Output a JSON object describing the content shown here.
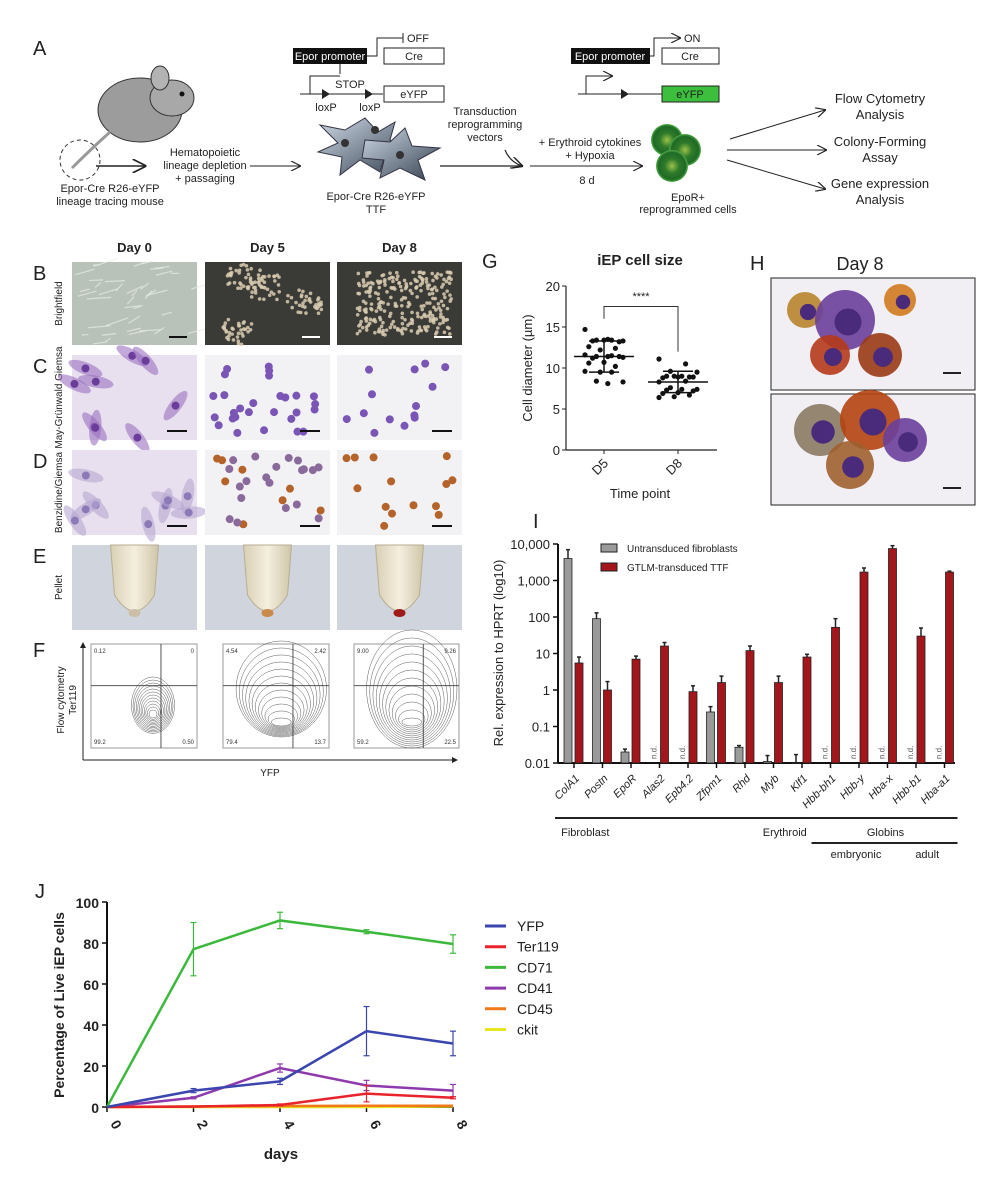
{
  "panels": {
    "A": "A",
    "B": "B",
    "C": "C",
    "D": "D",
    "E": "E",
    "F": "F",
    "G": "G",
    "H": "H",
    "I": "I",
    "J": "J"
  },
  "schematic": {
    "mouse_caption_1": "Epor-Cre R26-eYFP",
    "mouse_caption_2": "lineage tracing mouse",
    "step1_1": "Hematopoietic",
    "step1_2": "lineage depletion",
    "step1_3": "+ passaging",
    "construct_off": {
      "promoter": "Epor promoter",
      "cre": "Cre",
      "state": "OFF",
      "stop": "STOP",
      "loxp1": "loxP",
      "loxp2": "loxP",
      "reporter": "eYFP"
    },
    "ttf_caption_1": "Epor-Cre R26-eYFP",
    "ttf_caption_2": "TTF",
    "step2_1": "Transduction",
    "step2_2": "reprogramming",
    "step2_3": "vectors",
    "step3_1": "+ Erythroid cytokines",
    "step3_2": "+ Hypoxia",
    "step3_3": "8 d",
    "construct_on": {
      "promoter": "Epor promoter",
      "cre": "Cre",
      "state": "ON",
      "reporter": "eYFP"
    },
    "cells_caption_1": "EpoR+",
    "cells_caption_2": "reprogrammed cells",
    "outputs": [
      [
        "Flow Cytometry",
        "Analysis"
      ],
      [
        "Colony-Forming",
        "Assay"
      ],
      [
        "Gene expression",
        "Analysis"
      ]
    ]
  },
  "micro": {
    "columns": [
      "Day 0",
      "Day 5",
      "Day 8"
    ],
    "rows": [
      "Brightfield",
      "May-Grünwald Giemsa",
      "Benzidine/Giemsa",
      "Pellet",
      "Flow cytometry"
    ],
    "flow_ylabel": "Ter119",
    "flow_xlabel": "YFP",
    "flow_quadrants": [
      {
        "ul": "0.12",
        "ur": "0",
        "ll": "99.2",
        "lr": "0.50"
      },
      {
        "ul": "4.54",
        "ur": "2.42",
        "ll": "79.4",
        "lr": "13.7"
      },
      {
        "ul": "9.00",
        "ur": "9.26",
        "ll": "59.2",
        "lr": "22.5"
      }
    ]
  },
  "panelH": {
    "title": "Day 8"
  },
  "chart_data": [
    {
      "id": "G",
      "type": "scatter",
      "title": "iEP cell size",
      "xlabel": "Time point",
      "ylabel": "Cell diameter (µm)",
      "categories": [
        "D5",
        "D8"
      ],
      "ylim": [
        0,
        20
      ],
      "yticks": [
        0,
        5,
        10,
        15,
        20
      ],
      "significance": "****",
      "series": [
        {
          "name": "D5",
          "values": [
            14.7,
            13.4,
            13.4,
            13.3,
            13.5,
            13.3,
            13.2,
            13.4,
            12.6,
            12.4,
            12.2,
            11.6,
            11.5,
            11.4,
            11.3,
            11.4,
            11.2,
            11.4,
            10.7,
            10.6,
            10.2,
            9.5,
            9.6,
            9.5,
            8.4,
            8.3,
            8.1
          ],
          "mean": 11.4,
          "sd": 1.9
        },
        {
          "name": "D8",
          "values": [
            11.1,
            10.5,
            9.6,
            9.5,
            9.0,
            9.0,
            8.9,
            8.9,
            8.8,
            8.9,
            9.0,
            8.3,
            8.4,
            7.6,
            7.4,
            7.4,
            7.3,
            7.2,
            7.0,
            6.9,
            6.7,
            6.5,
            6.4
          ],
          "mean": 8.3,
          "sd": 1.3
        }
      ]
    },
    {
      "id": "I",
      "type": "bar",
      "scale": "log10",
      "ylabel": "Rel. expression to HPRT (log10)",
      "ylim": [
        0.01,
        10000
      ],
      "yticks": [
        "0.01",
        "0.1",
        "1",
        "10",
        "100",
        "1,000",
        "10,000"
      ],
      "categories": [
        "ColA1",
        "Postn",
        "EpoR",
        "Alas2",
        "Epb4.2",
        "Zfpm1",
        "Rhd",
        "Myb",
        "Klf1",
        "Hbb-bh1",
        "Hbb-y",
        "Hba-x",
        "Hbb-b1",
        "Hba-a1"
      ],
      "nd_label": "n.d.",
      "series": [
        {
          "name": "Untransduced fibroblasts",
          "color": "#9a9a9a",
          "values": [
            4000,
            90,
            0.02,
            null,
            null,
            0.25,
            0.027,
            0.011,
            0.01,
            null,
            null,
            null,
            null,
            null
          ],
          "errors": [
            7000,
            130,
            0.024,
            null,
            null,
            0.35,
            0.03,
            0.016,
            0.017,
            null,
            null,
            null,
            null,
            null
          ]
        },
        {
          "name": "GTLM-transduced TTF",
          "color": "#a3161c",
          "values": [
            5.5,
            1,
            7,
            16,
            0.9,
            1.6,
            12,
            1.6,
            8,
            52,
            1700,
            7500,
            30,
            1700
          ],
          "errors": [
            8,
            1.7,
            8.5,
            20,
            1.3,
            2.4,
            16,
            2.4,
            9.5,
            90,
            2200,
            9000,
            50,
            1800
          ]
        }
      ],
      "groups": [
        {
          "label": "Fibroblast",
          "from": 0,
          "to": 1,
          "level": 1
        },
        {
          "label": "Erythroid",
          "from": 2,
          "to": 13,
          "level": 1
        },
        {
          "label": "Globins",
          "from": 9,
          "to": 13,
          "level": 1
        },
        {
          "label": "embryonic",
          "from": 9,
          "to": 11,
          "level": 2
        },
        {
          "label": "adult",
          "from": 12,
          "to": 13,
          "level": 2
        }
      ]
    },
    {
      "id": "J",
      "type": "line",
      "xlabel": "days",
      "ylabel": "Percentage of Live iEP cells",
      "x": [
        0,
        2,
        4,
        6,
        8
      ],
      "xlim": [
        0,
        8
      ],
      "ylim": [
        0,
        100
      ],
      "yticks": [
        0,
        20,
        40,
        60,
        80,
        100
      ],
      "legend": "right",
      "series": [
        {
          "name": "YFP",
          "color": "#3a45b0",
          "values": [
            0,
            8,
            12.5,
            37,
            31
          ],
          "errors": [
            0,
            1,
            1.5,
            12,
            6
          ]
        },
        {
          "name": "Ter119",
          "color": "#e8232a",
          "values": [
            0,
            0.2,
            1,
            6.5,
            4.5
          ],
          "errors": [
            0,
            0,
            0.5,
            4,
            0.5
          ]
        },
        {
          "name": "CD71",
          "color": "#3cb93c",
          "values": [
            0,
            77,
            91,
            85.5,
            79.5
          ],
          "errors": [
            0,
            13,
            4,
            1,
            4.5
          ]
        },
        {
          "name": "CD41",
          "color": "#8e3aad",
          "values": [
            0,
            4.5,
            19,
            10.5,
            8
          ],
          "errors": [
            0,
            0.5,
            2,
            2.5,
            3
          ]
        },
        {
          "name": "CD45",
          "color": "#f07a1a",
          "values": [
            0,
            0.3,
            0.5,
            0.6,
            0.6
          ],
          "errors": [
            0,
            0,
            0,
            0,
            0
          ]
        },
        {
          "name": "ckit",
          "color": "#e6e61a",
          "values": [
            0,
            0,
            0,
            0,
            0.3
          ],
          "errors": [
            0,
            0,
            0,
            0,
            0
          ]
        }
      ]
    }
  ]
}
